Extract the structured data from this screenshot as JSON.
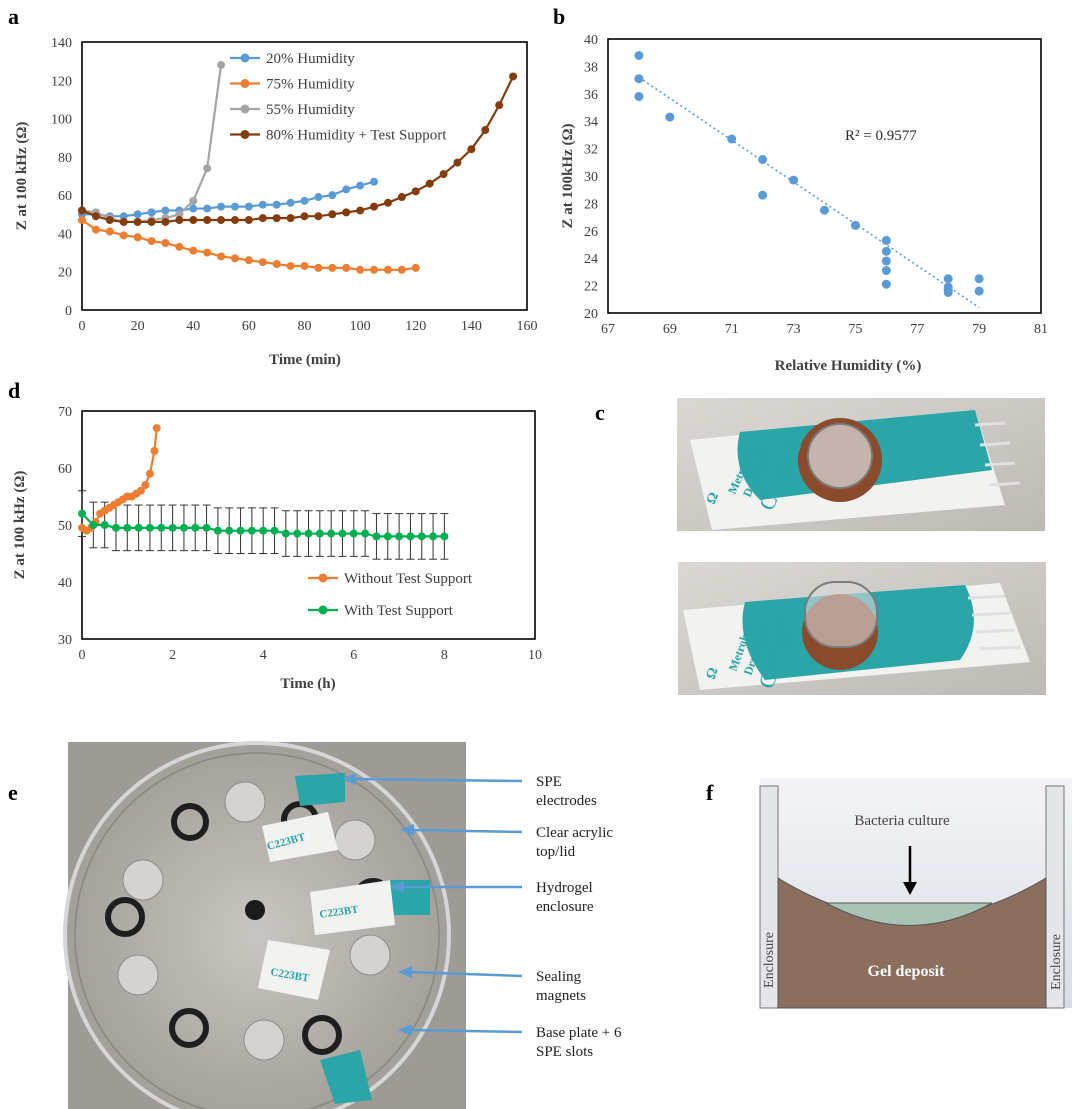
{
  "panel_letters": {
    "a": "a",
    "b": "b",
    "c": "c",
    "d": "d",
    "e": "e",
    "f": "f"
  },
  "chart_data": [
    {
      "panel": "a",
      "type": "line",
      "xlabel": "Time (min)",
      "ylabel": "Z at 100 kHz (Ω)",
      "xlim": [
        0,
        160
      ],
      "ylim": [
        0,
        140
      ],
      "xticks": [
        "0",
        "20",
        "40",
        "60",
        "80",
        "100",
        "120",
        "140",
        "160"
      ],
      "yticks": [
        "0",
        "20",
        "40",
        "60",
        "80",
        "100",
        "120",
        "140"
      ],
      "legend_position": "top-center",
      "series": [
        {
          "name": "20% Humidity",
          "color": "#5b9bd5",
          "x": [
            0,
            5,
            10,
            15,
            20,
            25,
            30,
            35,
            40,
            45,
            50,
            55,
            60,
            65,
            70,
            75,
            80,
            85,
            90,
            95,
            100,
            105
          ],
          "y": [
            50,
            50,
            49,
            49,
            50,
            51,
            52,
            52,
            53,
            53,
            54,
            54,
            54,
            55,
            55,
            56,
            57,
            59,
            60,
            63,
            65,
            67
          ]
        },
        {
          "name": "75% Humidity",
          "color": "#ed7d31",
          "x": [
            0,
            5,
            10,
            15,
            20,
            25,
            30,
            35,
            40,
            45,
            50,
            55,
            60,
            65,
            70,
            75,
            80,
            85,
            90,
            95,
            100,
            105,
            110,
            115,
            120
          ],
          "y": [
            47,
            42,
            41,
            39,
            38,
            36,
            35,
            33,
            31,
            30,
            28,
            27,
            26,
            25,
            24,
            23,
            23,
            22,
            22,
            22,
            21,
            21,
            21,
            21,
            22
          ]
        },
        {
          "name": "55% Humidity",
          "color": "#a5a5a5",
          "x": [
            0,
            5,
            10,
            15,
            20,
            25,
            30,
            35,
            40,
            45,
            50
          ],
          "y": [
            52,
            51,
            48,
            46,
            46,
            47,
            48,
            50,
            57,
            74,
            128
          ]
        },
        {
          "name": "80% Humidity + Test Support",
          "color": "#843c0c",
          "x": [
            0,
            5,
            10,
            15,
            20,
            25,
            30,
            35,
            40,
            45,
            50,
            55,
            60,
            65,
            70,
            75,
            80,
            85,
            90,
            95,
            100,
            105,
            110,
            115,
            120,
            125,
            130,
            135,
            140,
            145,
            150,
            155
          ],
          "y": [
            52,
            49,
            47,
            46,
            46,
            46,
            46,
            47,
            47,
            47,
            47,
            47,
            47,
            48,
            48,
            48,
            49,
            49,
            50,
            51,
            52,
            54,
            56,
            59,
            62,
            66,
            71,
            77,
            84,
            94,
            107,
            122
          ]
        }
      ]
    },
    {
      "panel": "b",
      "type": "scatter",
      "xlabel": "Relative Humidity (%)",
      "ylabel": "Z at 100kHz (Ω)",
      "xlim": [
        67,
        81
      ],
      "ylim": [
        20,
        40
      ],
      "xticks": [
        "67",
        "69",
        "71",
        "73",
        "75",
        "77",
        "79",
        "81"
      ],
      "yticks": [
        "20",
        "22",
        "24",
        "26",
        "28",
        "30",
        "32",
        "34",
        "36",
        "38",
        "40"
      ],
      "annotation": "R² = 0.9577",
      "trendline": {
        "x": [
          68,
          79
        ],
        "y": [
          37.2,
          20.4
        ],
        "style": "dotted",
        "color": "#5b9bd5"
      },
      "series": [
        {
          "color": "#5b9bd5",
          "x": [
            68,
            68,
            68,
            69,
            71,
            72,
            72,
            73,
            74,
            75,
            76,
            76,
            76,
            76,
            76,
            78,
            78,
            78,
            78,
            79,
            79
          ],
          "y": [
            38.8,
            37.1,
            35.8,
            34.3,
            32.7,
            31.2,
            28.6,
            29.7,
            27.5,
            26.4,
            25.3,
            24.5,
            23.8,
            23.1,
            22.1,
            21.9,
            21.7,
            21.5,
            22.5,
            22.5,
            21.6
          ]
        }
      ]
    },
    {
      "panel": "d",
      "type": "line",
      "xlabel": "Time (h)",
      "ylabel": "Z at 100 kHz (Ω)",
      "xlim": [
        0,
        10
      ],
      "ylim": [
        30,
        70
      ],
      "xticks": [
        "0",
        "2",
        "4",
        "6",
        "8",
        "10"
      ],
      "yticks": [
        "30",
        "40",
        "50",
        "60",
        "70"
      ],
      "legend_position": "bottom-right",
      "series": [
        {
          "name": "Without Test Support",
          "color": "#ed7d31",
          "x": [
            0,
            0.1,
            0.2,
            0.25,
            0.3,
            0.4,
            0.5,
            0.6,
            0.7,
            0.8,
            0.9,
            1.0,
            1.1,
            1.2,
            1.3,
            1.4,
            1.5,
            1.6,
            1.65
          ],
          "y": [
            49.5,
            49,
            49.5,
            50,
            50.5,
            52,
            52.5,
            53,
            53.5,
            54,
            54.5,
            55,
            55,
            55.5,
            56,
            57,
            59,
            63,
            67
          ]
        },
        {
          "name": "With Test Support",
          "color": "#00b050",
          "errorbar": 4,
          "x": [
            0,
            0.25,
            0.5,
            0.75,
            1,
            1.25,
            1.5,
            1.75,
            2,
            2.25,
            2.5,
            2.75,
            3,
            3.25,
            3.5,
            3.75,
            4,
            4.25,
            4.5,
            4.75,
            5,
            5.25,
            5.5,
            5.75,
            6,
            6.25,
            6.5,
            6.75,
            7,
            7.25,
            7.5,
            7.75,
            8
          ],
          "y": [
            52,
            50,
            50,
            49.5,
            49.5,
            49.5,
            49.5,
            49.5,
            49.5,
            49.5,
            49.5,
            49.5,
            49,
            49,
            49,
            49,
            49,
            49,
            48.5,
            48.5,
            48.5,
            48.5,
            48.5,
            48.5,
            48.5,
            48.5,
            48,
            48,
            48,
            48,
            48,
            48,
            48
          ]
        }
      ]
    }
  ],
  "panel_c": {
    "logo": "Ω",
    "brand_line1": "Metrohm",
    "brand_line2": "DropSens",
    "model": "C223BT",
    "card_color": "#2aa5a8"
  },
  "panel_e": {
    "callouts": [
      {
        "line1": "SPE",
        "line2": "electrodes"
      },
      {
        "line1": "Clear acrylic",
        "line2": "top/lid"
      },
      {
        "line1": "Hydrogel",
        "line2": "enclosure"
      },
      {
        "line1": "Sealing",
        "line2": "magnets"
      },
      {
        "line1": "Base plate + 6",
        "line2": "SPE slots"
      }
    ],
    "arrow_color": "#5b9bd5",
    "slot_label": "C223BT"
  },
  "panel_f": {
    "top_label": "Bacteria culture",
    "bottom_label": "Gel deposit",
    "left_label": "Enclosure",
    "right_label": "Enclosure",
    "gel_color": "#8b6e5e",
    "culture_color": "#a9c4b4"
  }
}
